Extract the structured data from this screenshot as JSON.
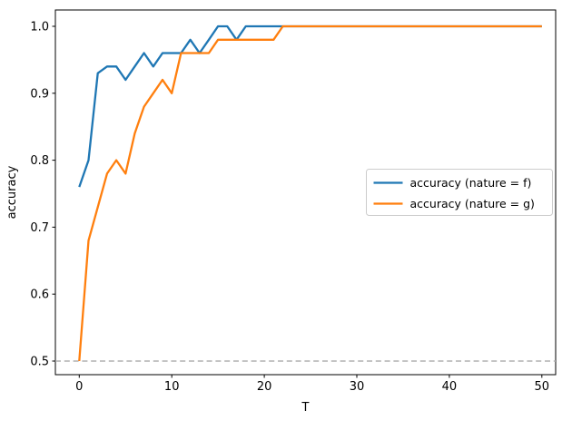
{
  "chart_data": {
    "type": "line",
    "title": "",
    "xlabel": "T",
    "ylabel": "accuracy",
    "x_tick_labels": [
      "0",
      "10",
      "20",
      "30",
      "40",
      "50"
    ],
    "x_tick_values": [
      0,
      10,
      20,
      30,
      40,
      50
    ],
    "y_tick_labels": [
      "0.5",
      "0.6",
      "0.7",
      "0.8",
      "0.9",
      "1.0"
    ],
    "y_tick_values": [
      0.5,
      0.6,
      0.7,
      0.8,
      0.9,
      1.0
    ],
    "xlim": [
      -2.5,
      52.5
    ],
    "ylim": [
      0.475,
      1.025
    ],
    "grid": false,
    "x": [
      0,
      1,
      2,
      3,
      4,
      5,
      6,
      7,
      8,
      9,
      10,
      11,
      12,
      13,
      14,
      15,
      16,
      17,
      18,
      19,
      20,
      21,
      22,
      50
    ],
    "series": [
      {
        "name": "accuracy (nature = f)",
        "color": "#1f77b4",
        "values": [
          0.76,
          0.8,
          0.93,
          0.94,
          0.94,
          0.92,
          0.94,
          0.96,
          0.94,
          0.96,
          0.96,
          0.96,
          0.98,
          0.96,
          0.98,
          1.0,
          1.0,
          0.98,
          1.0,
          1.0,
          1.0,
          1.0,
          1.0,
          1.0
        ]
      },
      {
        "name": "accuracy (nature = g)",
        "color": "#ff7f0e",
        "values": [
          0.5,
          0.68,
          0.73,
          0.78,
          0.8,
          0.78,
          0.84,
          0.88,
          0.9,
          0.92,
          0.9,
          0.96,
          0.96,
          0.96,
          0.96,
          0.98,
          0.98,
          0.98,
          0.98,
          0.98,
          0.98,
          0.98,
          1.0,
          1.0
        ]
      }
    ],
    "baseline": {
      "value": 0.5,
      "color": "#b0b0b0",
      "style": "dashed"
    },
    "legend": {
      "position": "center right",
      "entries": [
        "accuracy (nature = f)",
        "accuracy (nature = g)"
      ]
    }
  },
  "colors": {
    "frame": "#000000",
    "background": "#ffffff",
    "legend_border": "#cccccc"
  }
}
